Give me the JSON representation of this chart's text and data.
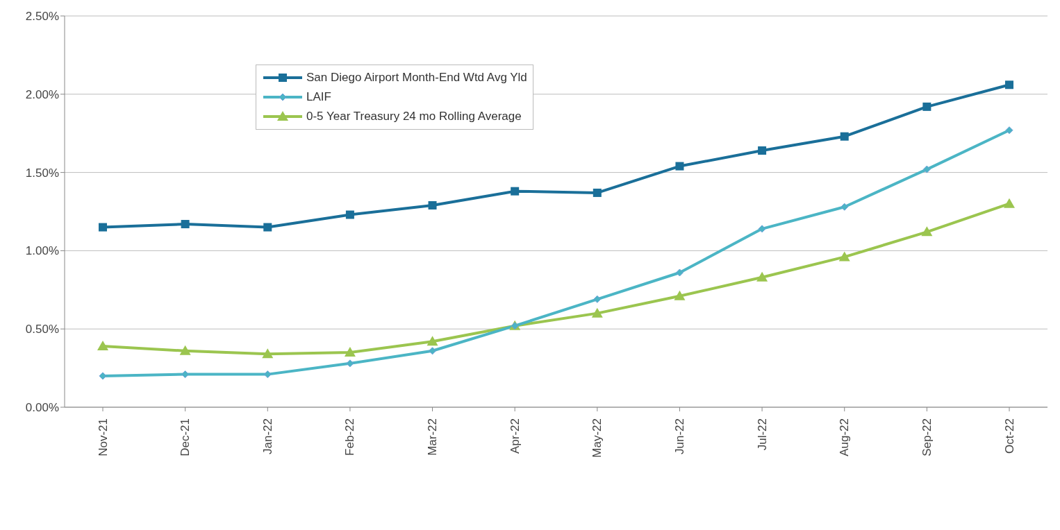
{
  "chart_data": {
    "type": "line",
    "categories": [
      "Nov-21",
      "Dec-21",
      "Jan-22",
      "Feb-22",
      "Mar-22",
      "Apr-22",
      "May-22",
      "Jun-22",
      "Jul-22",
      "Aug-22",
      "Sep-22",
      "Oct-22"
    ],
    "series": [
      {
        "name": "San Diego Airport Month-End Wtd Avg Yld",
        "color": "#1a6f99",
        "marker": "square",
        "values": [
          1.15,
          1.17,
          1.15,
          1.23,
          1.29,
          1.38,
          1.37,
          1.54,
          1.64,
          1.73,
          1.92,
          2.06
        ]
      },
      {
        "name": "LAIF",
        "color": "#4bb5c5",
        "marker": "diamond",
        "values": [
          0.2,
          0.21,
          0.21,
          0.28,
          0.36,
          0.52,
          0.69,
          0.86,
          1.14,
          1.28,
          1.52,
          1.77
        ]
      },
      {
        "name": "0-5 Year Treasury 24 mo Rolling Average",
        "color": "#9bc54f",
        "marker": "triangle",
        "values": [
          0.39,
          0.36,
          0.34,
          0.35,
          0.42,
          0.52,
          0.6,
          0.71,
          0.83,
          0.96,
          1.12,
          1.3
        ]
      }
    ],
    "ylim": [
      0,
      2.5
    ],
    "yticks": [
      {
        "value": 0,
        "label": "0.00%"
      },
      {
        "value": 0.5,
        "label": "0.50%"
      },
      {
        "value": 1,
        "label": "1.00%"
      },
      {
        "value": 1.5,
        "label": "1.50%"
      },
      {
        "value": 2,
        "label": "2.00%"
      },
      {
        "value": 2.5,
        "label": "2.50%"
      }
    ],
    "grid": "y",
    "legend": "top left",
    "line_style": "solid"
  }
}
